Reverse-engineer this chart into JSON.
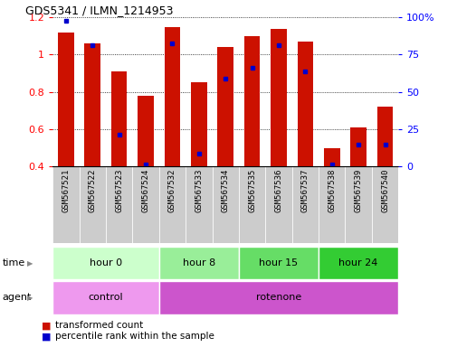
{
  "title": "GDS5341 / ILMN_1214953",
  "samples": [
    "GSM567521",
    "GSM567522",
    "GSM567523",
    "GSM567524",
    "GSM567532",
    "GSM567533",
    "GSM567534",
    "GSM567535",
    "GSM567536",
    "GSM567537",
    "GSM567538",
    "GSM567539",
    "GSM567540"
  ],
  "red_values": [
    1.12,
    1.06,
    0.91,
    0.78,
    1.15,
    0.85,
    1.04,
    1.1,
    1.14,
    1.07,
    0.5,
    0.61,
    0.72
  ],
  "blue_values": [
    1.18,
    1.05,
    0.57,
    0.41,
    1.06,
    0.47,
    0.87,
    0.93,
    1.05,
    0.91,
    0.41,
    0.52,
    0.52
  ],
  "ymin": 0.4,
  "ymax": 1.2,
  "yticks_left": [
    0.4,
    0.6,
    0.8,
    1.0,
    1.2
  ],
  "yticks_right": [
    0,
    25,
    50,
    75,
    100
  ],
  "bar_color": "#cc1100",
  "dot_color": "#0000cc",
  "bar_width": 0.6,
  "time_groups": [
    {
      "label": "hour 0",
      "start": 0,
      "end": 4,
      "color": "#ccffcc"
    },
    {
      "label": "hour 8",
      "start": 4,
      "end": 7,
      "color": "#99ee99"
    },
    {
      "label": "hour 15",
      "start": 7,
      "end": 10,
      "color": "#66dd66"
    },
    {
      "label": "hour 24",
      "start": 10,
      "end": 13,
      "color": "#33cc33"
    }
  ],
  "agent_groups": [
    {
      "label": "control",
      "start": 0,
      "end": 4,
      "color": "#ee99ee"
    },
    {
      "label": "rotenone",
      "start": 4,
      "end": 13,
      "color": "#cc55cc"
    }
  ],
  "legend_red": "transformed count",
  "legend_blue": "percentile rank within the sample",
  "xlabels_bg": "#cccccc",
  "figure_width": 5.06,
  "figure_height": 3.84,
  "dpi": 100
}
